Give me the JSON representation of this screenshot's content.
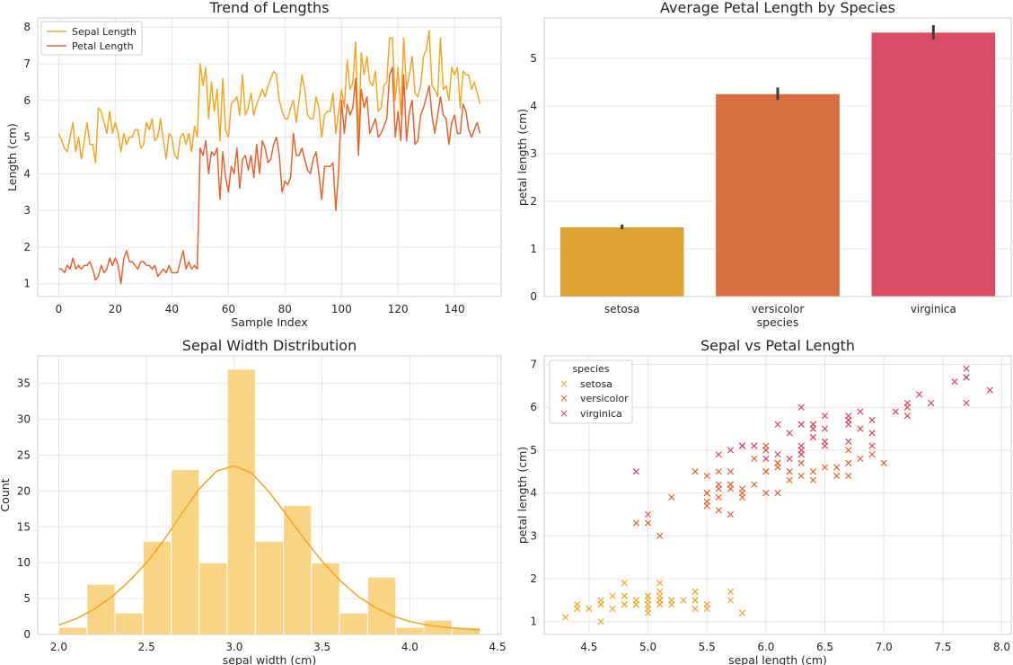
{
  "colors": {
    "orange": "#F5A623",
    "dark_orange": "#E8632B",
    "red": "#E0435E",
    "grid": "#E5E5E5",
    "hist_fill": "#FAD485",
    "bar_setosa": "#DFA131",
    "bar_versicolor": "#D76F3E",
    "bar_virginica": "#DB4C66"
  },
  "chart_data": [
    {
      "type": "line",
      "title": "Trend of Lengths",
      "xlabel": "Sample Index",
      "ylabel": "Length (cm)",
      "xlim": [
        -7.45,
        156.45
      ],
      "ylim": [
        0.65,
        8.25
      ],
      "xticks": [
        0,
        20,
        40,
        60,
        80,
        100,
        120,
        140
      ],
      "yticks": [
        1,
        2,
        3,
        4,
        5,
        6,
        7,
        8
      ],
      "legend": "top-left",
      "series": [
        {
          "name": "Sepal Length",
          "color": "#F5A623",
          "values": [
            5.1,
            4.9,
            4.7,
            4.6,
            5.0,
            5.4,
            4.6,
            5.0,
            4.4,
            4.9,
            5.4,
            4.8,
            4.8,
            4.3,
            5.8,
            5.7,
            5.4,
            5.1,
            5.7,
            5.1,
            5.4,
            5.1,
            4.6,
            5.1,
            4.8,
            5.0,
            5.0,
            5.2,
            5.2,
            4.7,
            4.8,
            5.4,
            5.2,
            5.5,
            4.9,
            5.0,
            5.5,
            4.9,
            4.4,
            5.1,
            5.0,
            4.5,
            4.4,
            5.0,
            5.1,
            4.8,
            5.1,
            4.6,
            5.3,
            5.0,
            7.0,
            6.4,
            6.9,
            5.5,
            6.5,
            5.7,
            6.3,
            4.9,
            6.6,
            5.2,
            5.0,
            5.9,
            6.0,
            6.1,
            5.6,
            6.7,
            5.6,
            5.8,
            6.2,
            5.6,
            5.9,
            6.1,
            6.3,
            6.1,
            6.4,
            6.6,
            6.8,
            6.7,
            6.0,
            5.7,
            5.5,
            5.5,
            5.8,
            6.0,
            5.4,
            6.0,
            6.7,
            6.3,
            5.6,
            5.5,
            5.5,
            6.1,
            5.8,
            5.0,
            5.6,
            5.7,
            5.7,
            6.2,
            5.1,
            5.7,
            6.3,
            5.8,
            7.1,
            6.3,
            6.5,
            7.6,
            4.9,
            7.3,
            6.7,
            7.2,
            6.5,
            6.4,
            6.8,
            5.7,
            5.8,
            6.4,
            6.5,
            7.7,
            7.7,
            6.0,
            6.9,
            5.6,
            7.7,
            6.3,
            6.7,
            7.2,
            6.2,
            6.1,
            6.4,
            7.2,
            7.4,
            7.9,
            6.4,
            6.3,
            6.1,
            7.7,
            6.3,
            6.4,
            6.0,
            6.9,
            6.7,
            6.9,
            5.8,
            6.8,
            6.7,
            6.7,
            6.3,
            6.5,
            6.2,
            5.9
          ]
        },
        {
          "name": "Petal Length",
          "color": "#E8632B",
          "values": [
            1.4,
            1.4,
            1.3,
            1.5,
            1.4,
            1.7,
            1.4,
            1.5,
            1.4,
            1.5,
            1.5,
            1.6,
            1.4,
            1.1,
            1.2,
            1.5,
            1.3,
            1.4,
            1.7,
            1.5,
            1.7,
            1.5,
            1.0,
            1.7,
            1.9,
            1.6,
            1.6,
            1.5,
            1.4,
            1.6,
            1.6,
            1.5,
            1.5,
            1.4,
            1.5,
            1.2,
            1.3,
            1.4,
            1.3,
            1.5,
            1.3,
            1.3,
            1.3,
            1.6,
            1.9,
            1.4,
            1.6,
            1.4,
            1.5,
            1.4,
            4.7,
            4.5,
            4.9,
            4.0,
            4.6,
            4.5,
            4.7,
            3.3,
            4.6,
            3.9,
            3.5,
            4.2,
            4.0,
            4.7,
            3.6,
            4.4,
            4.5,
            4.1,
            4.5,
            3.9,
            4.8,
            4.0,
            4.9,
            4.7,
            4.3,
            4.4,
            4.8,
            5.0,
            4.5,
            3.5,
            3.8,
            3.7,
            3.9,
            5.1,
            4.5,
            4.5,
            4.7,
            4.4,
            4.1,
            4.0,
            4.4,
            4.6,
            4.0,
            3.3,
            4.2,
            4.2,
            4.2,
            4.3,
            3.0,
            4.1,
            6.0,
            5.1,
            5.9,
            5.6,
            5.8,
            6.6,
            4.5,
            6.3,
            5.8,
            6.1,
            5.1,
            5.3,
            5.5,
            5.0,
            5.1,
            5.3,
            5.5,
            6.7,
            6.9,
            5.0,
            5.7,
            4.9,
            6.7,
            4.9,
            5.7,
            6.0,
            4.8,
            4.9,
            5.6,
            5.8,
            6.1,
            6.4,
            5.6,
            5.1,
            5.6,
            6.1,
            5.6,
            5.5,
            4.8,
            5.4,
            5.6,
            5.1,
            5.1,
            5.9,
            5.7,
            5.2,
            5.0,
            5.2,
            5.4,
            5.1
          ]
        }
      ]
    },
    {
      "type": "bar",
      "title": "Average Petal Length by Species",
      "xlabel": "species",
      "ylabel": "petal length (cm)",
      "ylim": [
        0,
        5.85
      ],
      "yticks": [
        0,
        1,
        2,
        3,
        4,
        5
      ],
      "categories": [
        "setosa",
        "versicolor",
        "virginica"
      ],
      "values": [
        1.462,
        4.26,
        5.552
      ],
      "ci_low": [
        1.415,
        4.13,
        5.4
      ],
      "ci_high": [
        1.512,
        4.39,
        5.7
      ]
    },
    {
      "type": "bar",
      "title": "Sepal Width Distribution",
      "xlabel": "sepal width (cm)",
      "ylabel": "Count",
      "xlim": [
        1.88,
        4.52
      ],
      "ylim": [
        0,
        38.85
      ],
      "xticks": [
        2.0,
        2.5,
        3.0,
        3.5,
        4.0,
        4.5
      ],
      "yticks": [
        0,
        5,
        10,
        15,
        20,
        25,
        30,
        35
      ],
      "bin_edges": [
        2.0,
        2.16,
        2.32,
        2.48,
        2.64,
        2.8,
        2.96,
        3.12,
        3.28,
        3.44,
        3.6,
        3.76,
        3.92,
        4.08,
        4.24,
        4.4
      ],
      "counts": [
        1,
        7,
        3,
        13,
        23,
        10,
        37,
        13,
        18,
        10,
        3,
        8,
        1,
        2,
        1
      ],
      "kde": {
        "x": [
          2.0,
          2.1,
          2.2,
          2.3,
          2.4,
          2.5,
          2.6,
          2.7,
          2.8,
          2.9,
          3.0,
          3.1,
          3.2,
          3.3,
          3.4,
          3.5,
          3.6,
          3.7,
          3.8,
          3.9,
          4.0,
          4.1,
          4.2,
          4.3,
          4.4
        ],
        "y": [
          1.3,
          2.2,
          3.5,
          5.2,
          7.4,
          10.0,
          13.2,
          16.8,
          20.3,
          22.8,
          23.5,
          22.5,
          19.8,
          16.6,
          13.3,
          10.2,
          7.6,
          5.4,
          3.8,
          2.6,
          1.8,
          1.3,
          1.0,
          0.8,
          0.6
        ]
      }
    },
    {
      "type": "scatter",
      "title": "Sepal vs Petal Length",
      "xlabel": "sepal length (cm)",
      "ylabel": "petal length (cm)",
      "xlim": [
        4.12,
        8.08
      ],
      "ylim": [
        0.7,
        7.2
      ],
      "xticks": [
        4.5,
        5.0,
        5.5,
        6.0,
        6.5,
        7.0,
        7.5,
        8.0
      ],
      "yticks": [
        1,
        2,
        3,
        4,
        5,
        6,
        7
      ],
      "legend": "top-left",
      "legend_title": "species",
      "series": [
        {
          "name": "setosa",
          "color": "#F5A623",
          "points": [
            [
              5.1,
              1.4
            ],
            [
              4.9,
              1.4
            ],
            [
              4.7,
              1.3
            ],
            [
              4.6,
              1.5
            ],
            [
              5.0,
              1.4
            ],
            [
              5.4,
              1.7
            ],
            [
              4.6,
              1.4
            ],
            [
              5.0,
              1.5
            ],
            [
              4.4,
              1.4
            ],
            [
              4.9,
              1.5
            ],
            [
              5.4,
              1.5
            ],
            [
              4.8,
              1.6
            ],
            [
              4.8,
              1.4
            ],
            [
              4.3,
              1.1
            ],
            [
              5.8,
              1.2
            ],
            [
              5.7,
              1.5
            ],
            [
              5.4,
              1.3
            ],
            [
              5.1,
              1.4
            ],
            [
              5.7,
              1.7
            ],
            [
              5.1,
              1.5
            ],
            [
              5.4,
              1.7
            ],
            [
              5.1,
              1.5
            ],
            [
              4.6,
              1.0
            ],
            [
              5.1,
              1.7
            ],
            [
              4.8,
              1.9
            ],
            [
              5.0,
              1.6
            ],
            [
              5.0,
              1.6
            ],
            [
              5.2,
              1.5
            ],
            [
              5.2,
              1.4
            ],
            [
              4.7,
              1.6
            ],
            [
              4.8,
              1.6
            ],
            [
              5.4,
              1.5
            ],
            [
              5.2,
              1.5
            ],
            [
              5.5,
              1.4
            ],
            [
              4.9,
              1.5
            ],
            [
              5.0,
              1.2
            ],
            [
              5.5,
              1.3
            ],
            [
              4.9,
              1.4
            ],
            [
              4.4,
              1.3
            ],
            [
              5.1,
              1.5
            ],
            [
              5.0,
              1.3
            ],
            [
              4.5,
              1.3
            ],
            [
              4.4,
              1.3
            ],
            [
              5.0,
              1.6
            ],
            [
              5.1,
              1.9
            ],
            [
              4.8,
              1.4
            ],
            [
              5.1,
              1.6
            ],
            [
              4.6,
              1.4
            ],
            [
              5.3,
              1.5
            ],
            [
              5.0,
              1.4
            ]
          ]
        },
        {
          "name": "versicolor",
          "color": "#E8632B",
          "points": [
            [
              7.0,
              4.7
            ],
            [
              6.4,
              4.5
            ],
            [
              6.9,
              4.9
            ],
            [
              5.5,
              4.0
            ],
            [
              6.5,
              4.6
            ],
            [
              5.7,
              4.5
            ],
            [
              6.3,
              4.7
            ],
            [
              4.9,
              3.3
            ],
            [
              6.6,
              4.6
            ],
            [
              5.2,
              3.9
            ],
            [
              5.0,
              3.5
            ],
            [
              5.9,
              4.2
            ],
            [
              6.0,
              4.0
            ],
            [
              6.1,
              4.7
            ],
            [
              5.6,
              3.6
            ],
            [
              6.7,
              4.4
            ],
            [
              5.6,
              4.5
            ],
            [
              5.8,
              4.1
            ],
            [
              6.2,
              4.5
            ],
            [
              5.6,
              3.9
            ],
            [
              5.9,
              4.8
            ],
            [
              6.1,
              4.0
            ],
            [
              6.3,
              4.9
            ],
            [
              6.1,
              4.7
            ],
            [
              6.4,
              4.3
            ],
            [
              6.6,
              4.4
            ],
            [
              6.8,
              4.8
            ],
            [
              6.7,
              5.0
            ],
            [
              6.0,
              4.5
            ],
            [
              5.7,
              3.5
            ],
            [
              5.5,
              3.8
            ],
            [
              5.5,
              3.7
            ],
            [
              5.8,
              3.9
            ],
            [
              6.0,
              5.1
            ],
            [
              5.4,
              4.5
            ],
            [
              6.0,
              4.5
            ],
            [
              6.7,
              4.7
            ],
            [
              6.3,
              4.4
            ],
            [
              5.6,
              4.1
            ],
            [
              5.5,
              4.0
            ],
            [
              5.5,
              4.4
            ],
            [
              6.1,
              4.6
            ],
            [
              5.8,
              4.0
            ],
            [
              5.0,
              3.3
            ],
            [
              5.6,
              4.2
            ],
            [
              5.7,
              4.2
            ],
            [
              5.7,
              4.2
            ],
            [
              6.2,
              4.3
            ],
            [
              5.1,
              3.0
            ],
            [
              5.7,
              4.1
            ]
          ]
        },
        {
          "name": "virginica",
          "color": "#E0435E",
          "points": [
            [
              6.3,
              6.0
            ],
            [
              5.8,
              5.1
            ],
            [
              7.1,
              5.9
            ],
            [
              6.3,
              5.6
            ],
            [
              6.5,
              5.8
            ],
            [
              7.6,
              6.6
            ],
            [
              4.9,
              4.5
            ],
            [
              7.3,
              6.3
            ],
            [
              6.7,
              5.8
            ],
            [
              7.2,
              6.1
            ],
            [
              6.5,
              5.1
            ],
            [
              6.4,
              5.3
            ],
            [
              6.8,
              5.5
            ],
            [
              5.7,
              5.0
            ],
            [
              5.8,
              5.1
            ],
            [
              6.4,
              5.3
            ],
            [
              6.5,
              5.5
            ],
            [
              7.7,
              6.7
            ],
            [
              7.7,
              6.9
            ],
            [
              6.0,
              5.0
            ],
            [
              6.9,
              5.7
            ],
            [
              5.6,
              4.9
            ],
            [
              7.7,
              6.7
            ],
            [
              6.3,
              4.9
            ],
            [
              6.7,
              5.7
            ],
            [
              7.2,
              6.0
            ],
            [
              6.2,
              4.8
            ],
            [
              6.1,
              4.9
            ],
            [
              6.4,
              5.6
            ],
            [
              7.2,
              5.8
            ],
            [
              7.4,
              6.1
            ],
            [
              7.9,
              6.4
            ],
            [
              6.4,
              5.6
            ],
            [
              6.3,
              5.1
            ],
            [
              6.1,
              5.6
            ],
            [
              7.7,
              6.1
            ],
            [
              6.3,
              5.6
            ],
            [
              6.4,
              5.5
            ],
            [
              6.0,
              4.8
            ],
            [
              6.9,
              5.4
            ],
            [
              6.7,
              5.6
            ],
            [
              6.9,
              5.1
            ],
            [
              5.8,
              5.1
            ],
            [
              6.8,
              5.9
            ],
            [
              6.7,
              5.7
            ],
            [
              6.7,
              5.2
            ],
            [
              6.3,
              5.0
            ],
            [
              6.5,
              5.2
            ],
            [
              6.2,
              5.4
            ],
            [
              5.9,
              5.1
            ]
          ]
        }
      ]
    }
  ]
}
